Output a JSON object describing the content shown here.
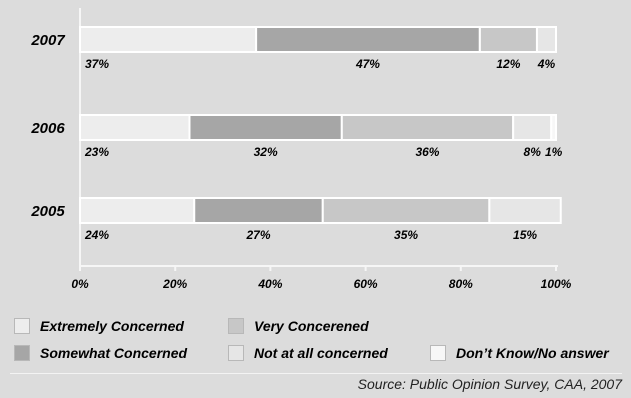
{
  "chart_data": {
    "type": "bar",
    "orientation": "horizontal",
    "stacked": true,
    "categories": [
      "2007",
      "2006",
      "2005"
    ],
    "series": [
      {
        "name": "Extremely Concerned",
        "values": [
          37,
          23,
          24
        ],
        "labels": [
          "37%",
          "23%",
          "24%"
        ],
        "color": "#ededed"
      },
      {
        "name": "Somewhat Concerned",
        "values": [
          47,
          32,
          27
        ],
        "labels": [
          "47%",
          "32%",
          "27%"
        ],
        "color": "#a6a6a6"
      },
      {
        "name": "Very Concerened",
        "values": [
          12,
          36,
          35
        ],
        "labels": [
          "12%",
          "36%",
          "35%"
        ],
        "color": "#c7c7c7"
      },
      {
        "name": "Not at all concerned",
        "values": [
          4,
          8,
          15
        ],
        "labels": [
          "4%",
          "8%",
          "15%"
        ],
        "color": "#e6e6e6"
      },
      {
        "name": "Don’t Know/No answer",
        "values": [
          0,
          1,
          0
        ],
        "labels": [
          "",
          "1%",
          ""
        ],
        "color": "#f7f7f7"
      }
    ],
    "xlim": [
      0,
      100
    ],
    "xticks": [
      "0%",
      "20%",
      "40%",
      "60%",
      "80%",
      "100%"
    ],
    "grid": false,
    "legend_position": "bottom",
    "title": "",
    "xlabel": "",
    "ylabel": ""
  },
  "legend": {
    "items": [
      {
        "label": "Extremely Concerned",
        "color": "#ededed"
      },
      {
        "label": "Very Concerened",
        "color": "#c7c7c7"
      },
      {
        "label": "Somewhat Concerned",
        "color": "#a6a6a6"
      },
      {
        "label": "Not at all concerned",
        "color": "#e6e6e6"
      },
      {
        "label": "Don’t Know/No answer",
        "color": "#f7f7f7"
      }
    ]
  },
  "source": "Source: Public Opinion Survey, CAA, 2007"
}
